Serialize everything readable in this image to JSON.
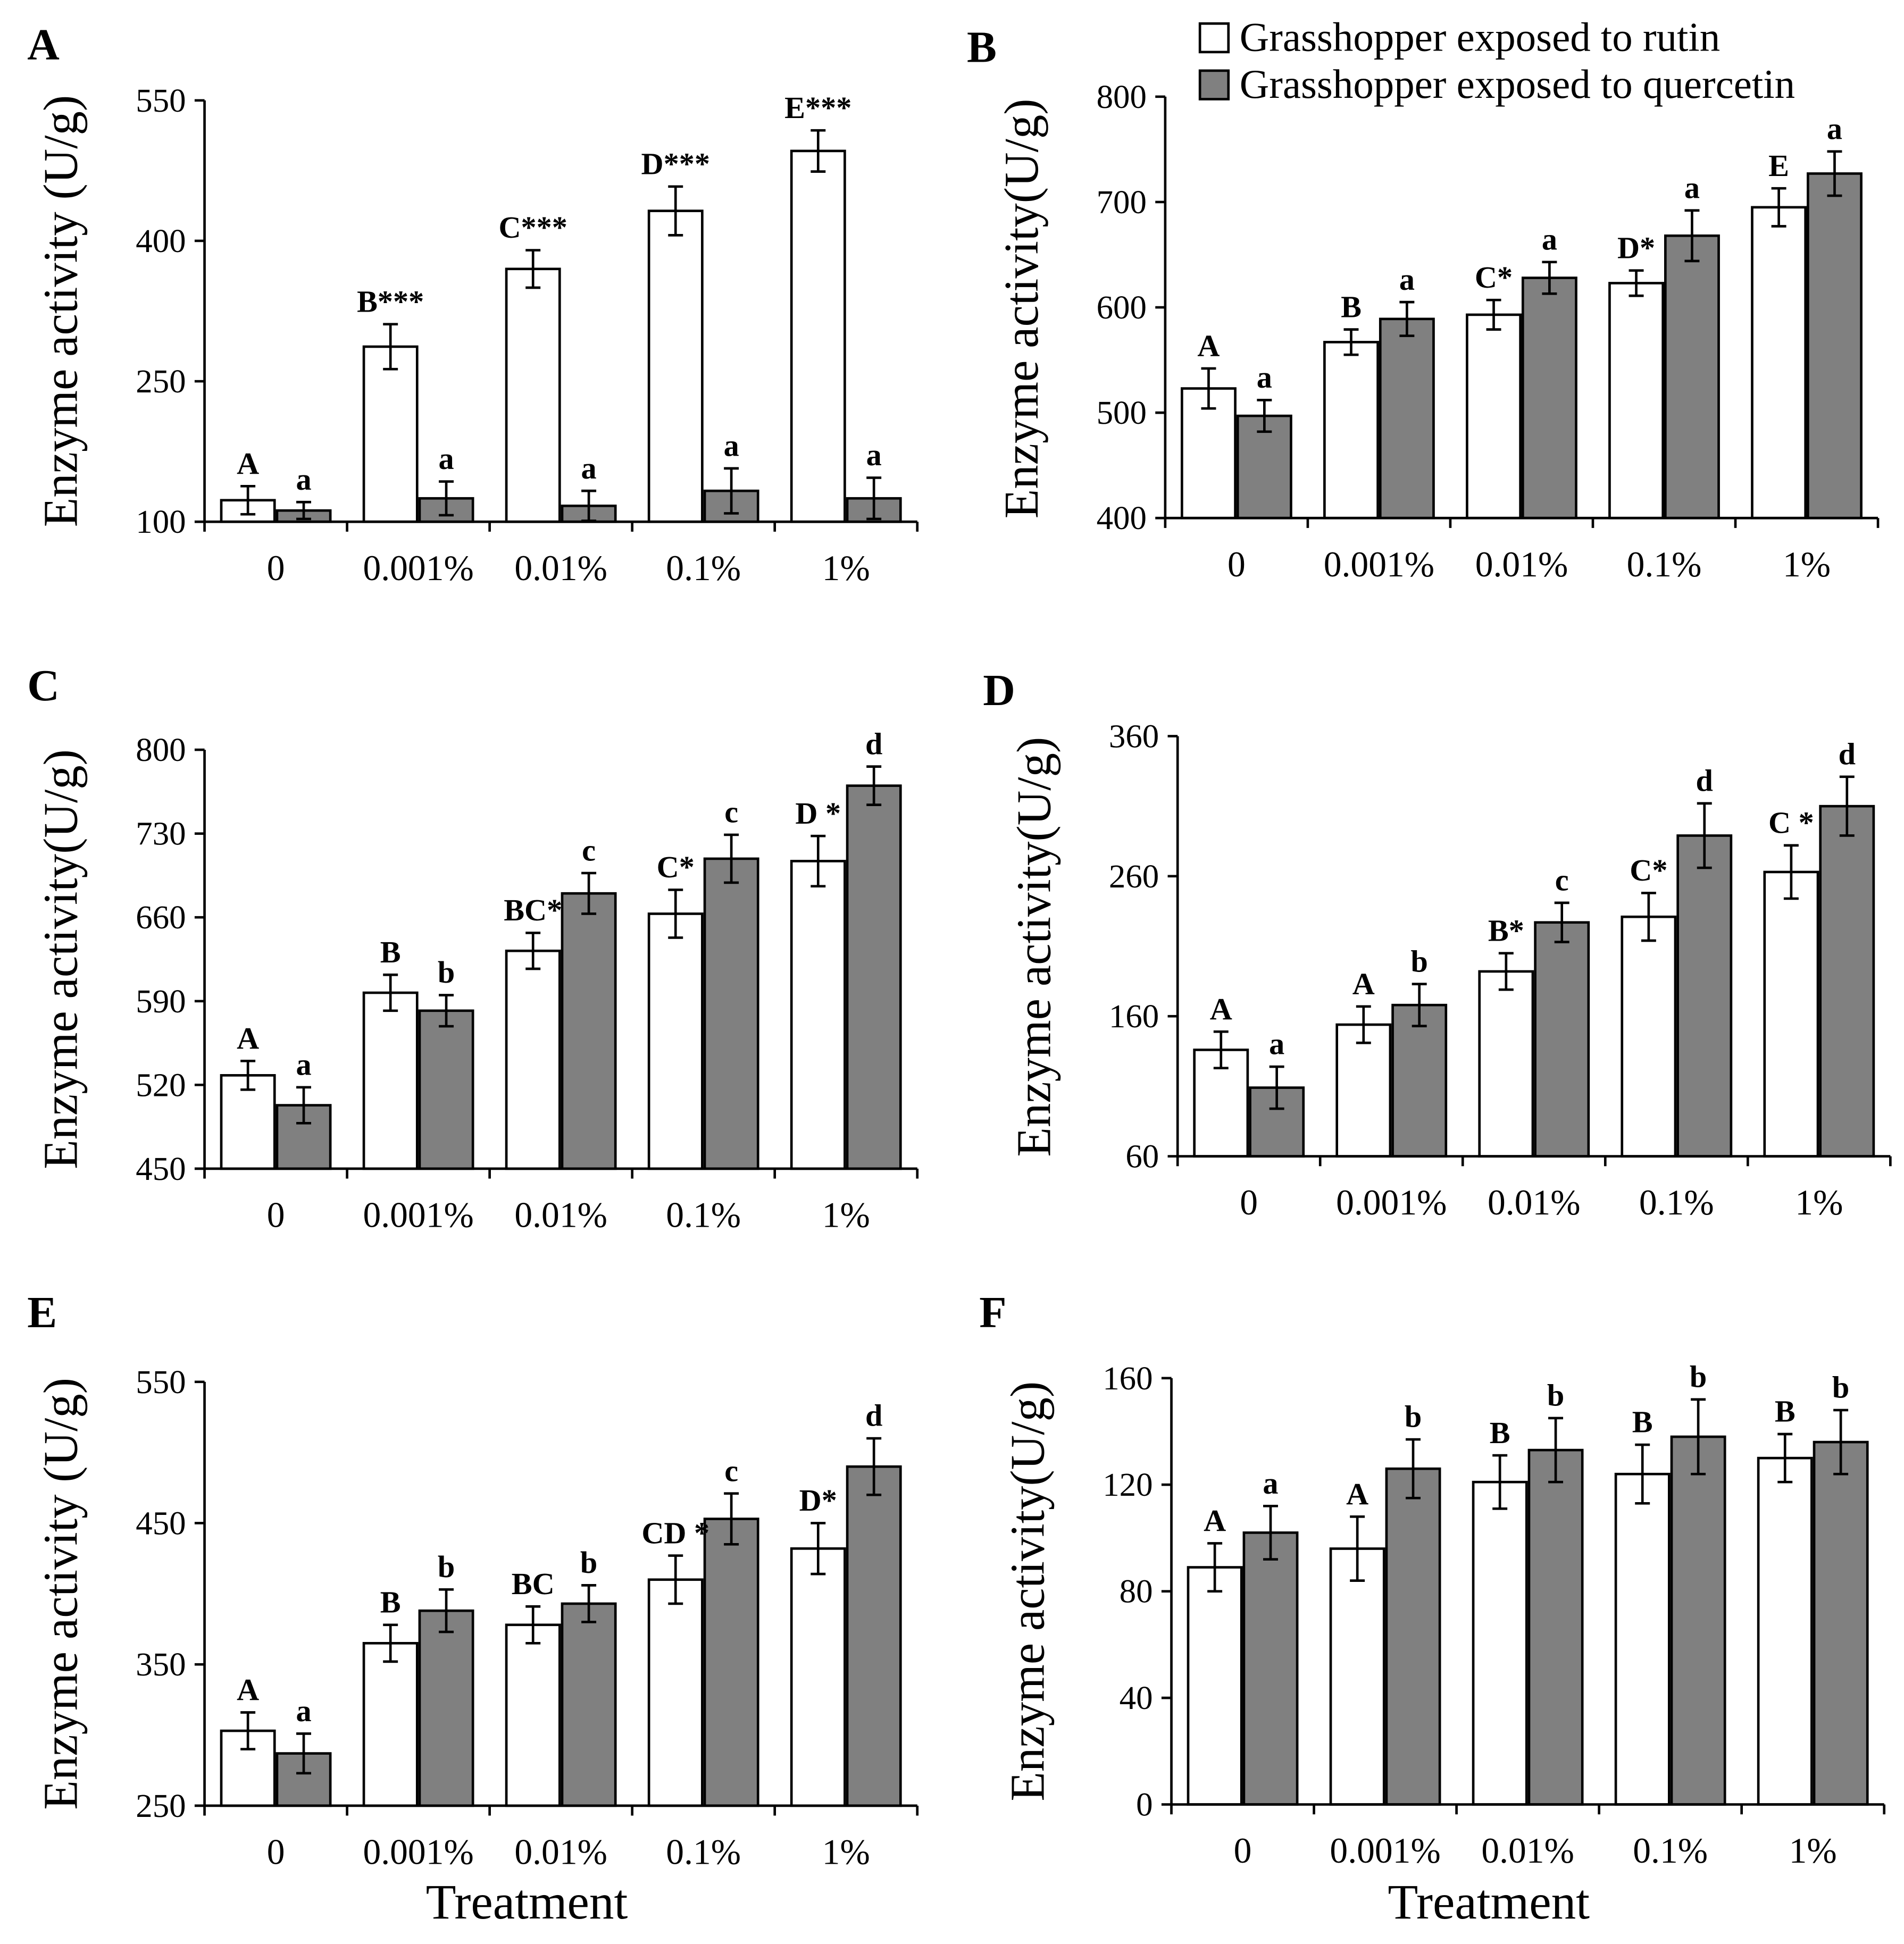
{
  "legend": {
    "items": [
      "Grasshopper exposed to rutin",
      "Grasshopper exposed to quercetin"
    ]
  },
  "colors": {
    "rutin_fill": "#ffffff",
    "quercetin_fill": "#808080",
    "outline": "#000000"
  },
  "chart_data": [
    {
      "panel": "A",
      "type": "bar",
      "ylabel": "Enzyme activity (U/g)",
      "categories": [
        "0",
        "0.001%",
        "0.01%",
        "0.1%",
        "1%"
      ],
      "ylim": [
        100,
        550
      ],
      "yticks": [
        100,
        250,
        400,
        550
      ],
      "series": [
        {
          "legend_index": 0,
          "values": [
            123,
            287,
            370,
            432,
            496
          ],
          "errors": [
            15,
            24,
            20,
            26,
            22
          ],
          "labels": [
            "A",
            "B***",
            "C***",
            "D***",
            "E***"
          ]
        },
        {
          "legend_index": 1,
          "values": [
            112,
            125,
            117,
            133,
            125
          ],
          "errors": [
            9,
            18,
            16,
            24,
            22
          ],
          "labels": [
            "a",
            "a",
            "a",
            "a",
            "a"
          ]
        }
      ]
    },
    {
      "panel": "B",
      "type": "bar",
      "ylabel": "Enzyme activity(U/g)",
      "categories": [
        "0",
        "0.001%",
        "0.01%",
        "0.1%",
        "1%"
      ],
      "ylim": [
        400,
        800
      ],
      "yticks": [
        400,
        500,
        600,
        700,
        800
      ],
      "series": [
        {
          "legend_index": 0,
          "values": [
            523,
            567,
            593,
            623,
            695
          ],
          "errors": [
            19,
            12,
            14,
            12,
            18
          ],
          "labels": [
            "A",
            "B",
            "C*",
            "D*",
            "E"
          ]
        },
        {
          "legend_index": 1,
          "values": [
            497,
            589,
            628,
            668,
            727
          ],
          "errors": [
            15,
            16,
            15,
            24,
            21
          ],
          "labels": [
            "a",
            "a",
            "a",
            "a",
            "a"
          ]
        }
      ]
    },
    {
      "panel": "C",
      "type": "bar",
      "ylabel": "Enzyme activity(U/g)",
      "categories": [
        "0",
        "0.001%",
        "0.01%",
        "0.1%",
        "1%"
      ],
      "ylim": [
        450,
        800
      ],
      "yticks": [
        450,
        520,
        590,
        660,
        730,
        800
      ],
      "series": [
        {
          "legend_index": 0,
          "values": [
            528,
            597,
            632,
            663,
            707
          ],
          "errors": [
            12,
            15,
            15,
            20,
            21
          ],
          "labels": [
            "A",
            "B",
            "BC*",
            "C*",
            "D *"
          ]
        },
        {
          "legend_index": 1,
          "values": [
            503,
            582,
            680,
            709,
            770
          ],
          "errors": [
            15,
            13,
            17,
            20,
            16
          ],
          "labels": [
            "a",
            "b",
            "c",
            "c",
            "d"
          ]
        }
      ]
    },
    {
      "panel": "D",
      "type": "bar",
      "ylabel": "Enzyme activity(U/g)",
      "categories": [
        "0",
        "0.001%",
        "0.01%",
        "0.1%",
        "1%"
      ],
      "ylim": [
        60,
        360
      ],
      "yticks": [
        60,
        160,
        260,
        360
      ],
      "series": [
        {
          "legend_index": 0,
          "values": [
            136,
            154,
            192,
            231,
            263
          ],
          "errors": [
            13,
            13,
            13,
            17,
            19
          ],
          "labels": [
            "A",
            "A",
            "B*",
            "C*",
            "C *"
          ]
        },
        {
          "legend_index": 1,
          "values": [
            109,
            168,
            227,
            289,
            310
          ],
          "errors": [
            15,
            15,
            14,
            23,
            21
          ],
          "labels": [
            "a",
            "b",
            "c",
            "d",
            "d"
          ]
        }
      ]
    },
    {
      "panel": "E",
      "type": "bar",
      "ylabel": "Enzyme activity (U/g)",
      "xlabel": "Treatment",
      "categories": [
        "0",
        "0.001%",
        "0.01%",
        "0.1%",
        "1%"
      ],
      "ylim": [
        250,
        550
      ],
      "yticks": [
        250,
        350,
        450,
        550
      ],
      "series": [
        {
          "legend_index": 0,
          "values": [
            303,
            365,
            378,
            410,
            432
          ],
          "errors": [
            13,
            13,
            13,
            17,
            18
          ],
          "labels": [
            "A",
            "B",
            "BC",
            "CD *",
            "D*"
          ]
        },
        {
          "legend_index": 1,
          "values": [
            287,
            388,
            393,
            453,
            490
          ],
          "errors": [
            14,
            15,
            13,
            18,
            20
          ],
          "labels": [
            "a",
            "b",
            "b",
            "c",
            "d"
          ]
        }
      ]
    },
    {
      "panel": "F",
      "type": "bar",
      "ylabel": "Enzyme activity(U/g)",
      "xlabel": "Treatment",
      "categories": [
        "0",
        "0.001%",
        "0.01%",
        "0.1%",
        "1%"
      ],
      "ylim": [
        0,
        160
      ],
      "yticks": [
        0,
        40,
        80,
        120,
        160
      ],
      "series": [
        {
          "legend_index": 0,
          "values": [
            89,
            96,
            121,
            124,
            130
          ],
          "errors": [
            9,
            12,
            10,
            11,
            9
          ],
          "labels": [
            "A",
            "A",
            "B",
            "B",
            "B"
          ]
        },
        {
          "legend_index": 1,
          "values": [
            102,
            126,
            133,
            138,
            136
          ],
          "errors": [
            10,
            11,
            12,
            14,
            12
          ],
          "labels": [
            "a",
            "b",
            "b",
            "b",
            "b"
          ]
        }
      ]
    }
  ]
}
